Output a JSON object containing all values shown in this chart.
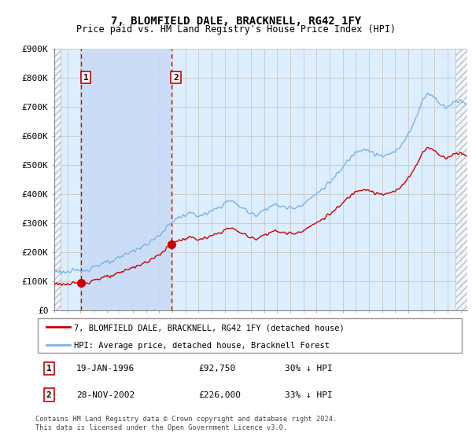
{
  "title": "7, BLOMFIELD DALE, BRACKNELL, RG42 1FY",
  "subtitle": "Price paid vs. HM Land Registry's House Price Index (HPI)",
  "ylabel_ticks": [
    "£0",
    "£100K",
    "£200K",
    "£300K",
    "£400K",
    "£500K",
    "£600K",
    "£700K",
    "£800K",
    "£900K"
  ],
  "ylim": [
    0,
    900000
  ],
  "xlim_start": 1994.0,
  "xlim_end": 2025.5,
  "sale1_date": 1996.05,
  "sale1_price": 92750,
  "sale1_label": "1",
  "sale2_date": 2002.91,
  "sale2_price": 226000,
  "sale2_label": "2",
  "hpi_color": "#7ab3e8",
  "price_color": "#cc0000",
  "dashed_color": "#cc0000",
  "grid_color": "#cccccc",
  "background_plot": "#ddeeff",
  "shade_between_color": "#c8daf5",
  "legend1_text": "7, BLOMFIELD DALE, BRACKNELL, RG42 1FY (detached house)",
  "legend2_text": "HPI: Average price, detached house, Bracknell Forest",
  "note1_num": "1",
  "note1_date": "19-JAN-1996",
  "note1_price": "£92,750",
  "note1_hpi": "30% ↓ HPI",
  "note2_num": "2",
  "note2_date": "28-NOV-2002",
  "note2_price": "£226,000",
  "note2_hpi": "33% ↓ HPI",
  "footer": "Contains HM Land Registry data © Crown copyright and database right 2024.\nThis data is licensed under the Open Government Licence v3.0."
}
